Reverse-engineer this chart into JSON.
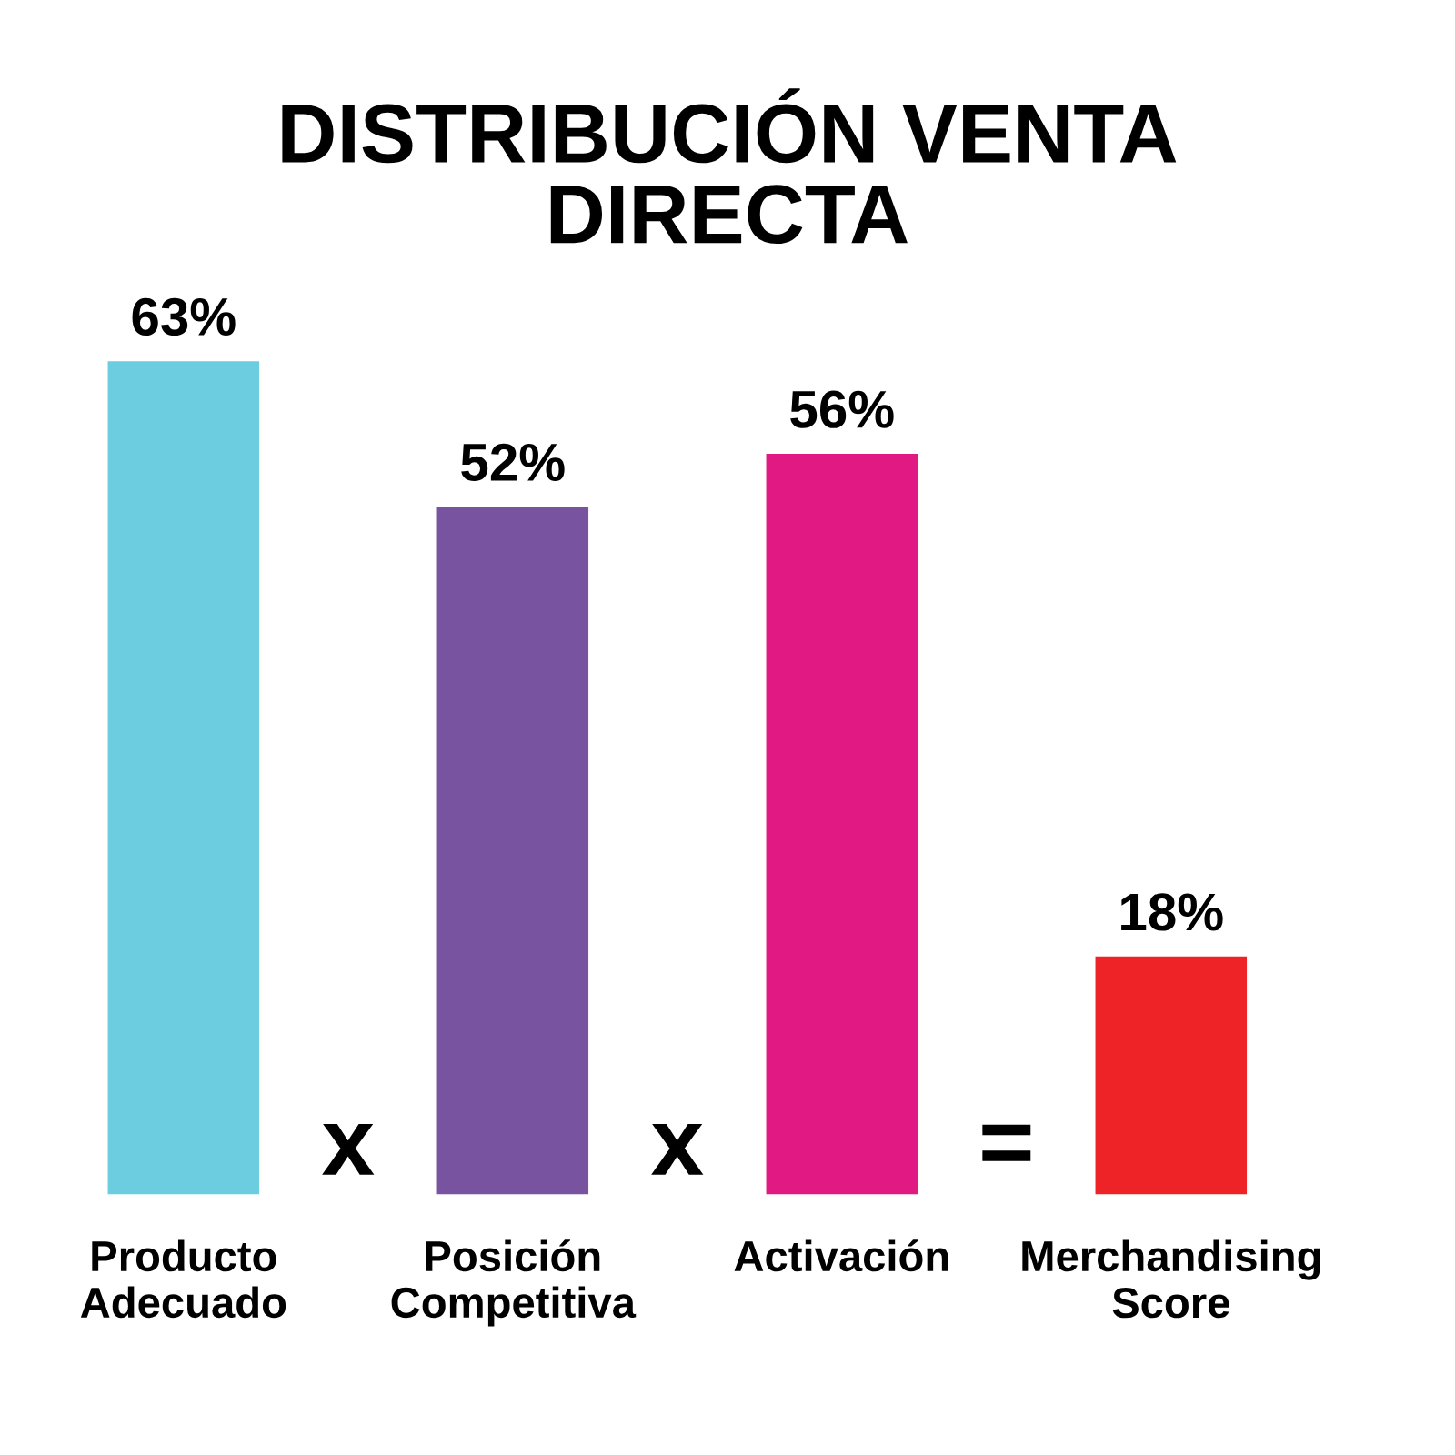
{
  "chart_data": {
    "type": "bar",
    "title": "DISTRIBUCIÓN VENTA\nDIRECTA",
    "categories": [
      "Producto\nAdecuado",
      "Posición\nCompetitiva",
      "Activación",
      "Merchandising\nScore"
    ],
    "values": [
      63,
      52,
      56,
      18
    ],
    "colors": [
      "#6dcde0",
      "#7753a0",
      "#e01a82",
      "#ee2328"
    ],
    "value_labels": [
      "63%",
      "52%",
      "56%",
      "18%"
    ],
    "annotations": [
      "x",
      "x",
      "="
    ],
    "grid": false
  }
}
